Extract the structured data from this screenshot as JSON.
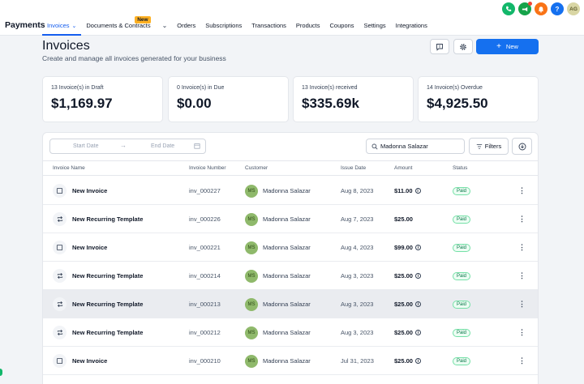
{
  "app": {
    "title": "Payments"
  },
  "nav": {
    "items": [
      {
        "label": "Invoices",
        "active": true,
        "has_chevron": true
      },
      {
        "label": "Documents & Contracts",
        "badge": "New"
      },
      {
        "label": "Orders"
      },
      {
        "label": "Subscriptions"
      },
      {
        "label": "Transactions"
      },
      {
        "label": "Products"
      },
      {
        "label": "Coupons"
      },
      {
        "label": "Settings"
      },
      {
        "label": "Integrations"
      }
    ]
  },
  "user": {
    "initials": "AG"
  },
  "page": {
    "title": "Invoices",
    "subtitle": "Create and manage all invoices generated for your business",
    "new_button": "New"
  },
  "stats": [
    {
      "label": "13 Invoice(s) in Draft",
      "value": "$1,169.97"
    },
    {
      "label": "0 Invoice(s) in Due",
      "value": "$0.00"
    },
    {
      "label": "13 Invoice(s) received",
      "value": "$335.69k"
    },
    {
      "label": "14 Invoice(s) Overdue",
      "value": "$4,925.50"
    }
  ],
  "filters": {
    "start_placeholder": "Start Date",
    "end_placeholder": "End Date",
    "search_value": "Madonna Salazar",
    "filters_label": "Filters"
  },
  "table": {
    "columns": [
      "Invoice Name",
      "Invoice Number",
      "Customer",
      "Issue Date",
      "Amount",
      "Status"
    ],
    "rows": [
      {
        "type": "single",
        "name": "New Invoice",
        "number": "inv_000227",
        "initials": "MS",
        "customer": "Madonna Salazar",
        "date": "Aug 8, 2023",
        "amount": "$11.00",
        "info": true,
        "status": "Paid"
      },
      {
        "type": "recurring",
        "name": "New Recurring Template",
        "number": "inv_000226",
        "initials": "MS",
        "customer": "Madonna Salazar",
        "date": "Aug 7, 2023",
        "amount": "$25.00",
        "info": false,
        "status": "Paid"
      },
      {
        "type": "single",
        "name": "New Invoice",
        "number": "inv_000221",
        "initials": "MS",
        "customer": "Madonna Salazar",
        "date": "Aug 4, 2023",
        "amount": "$99.00",
        "info": true,
        "status": "Paid"
      },
      {
        "type": "recurring",
        "name": "New Recurring Template",
        "number": "inv_000214",
        "initials": "MS",
        "customer": "Madonna Salazar",
        "date": "Aug 3, 2023",
        "amount": "$25.00",
        "info": true,
        "status": "Paid"
      },
      {
        "type": "recurring",
        "name": "New Recurring Template",
        "number": "inv_000213",
        "initials": "MS",
        "customer": "Madonna Salazar",
        "date": "Aug 3, 2023",
        "amount": "$25.00",
        "info": true,
        "status": "Paid",
        "highlighted": true
      },
      {
        "type": "recurring",
        "name": "New Recurring Template",
        "number": "inv_000212",
        "initials": "MS",
        "customer": "Madonna Salazar",
        "date": "Aug 3, 2023",
        "amount": "$25.00",
        "info": true,
        "status": "Paid"
      },
      {
        "type": "single",
        "name": "New Invoice",
        "number": "inv_000210",
        "initials": "MS",
        "customer": "Madonna Salazar",
        "date": "Jul 31, 2023",
        "amount": "$25.00",
        "info": true,
        "status": "Paid"
      }
    ]
  }
}
